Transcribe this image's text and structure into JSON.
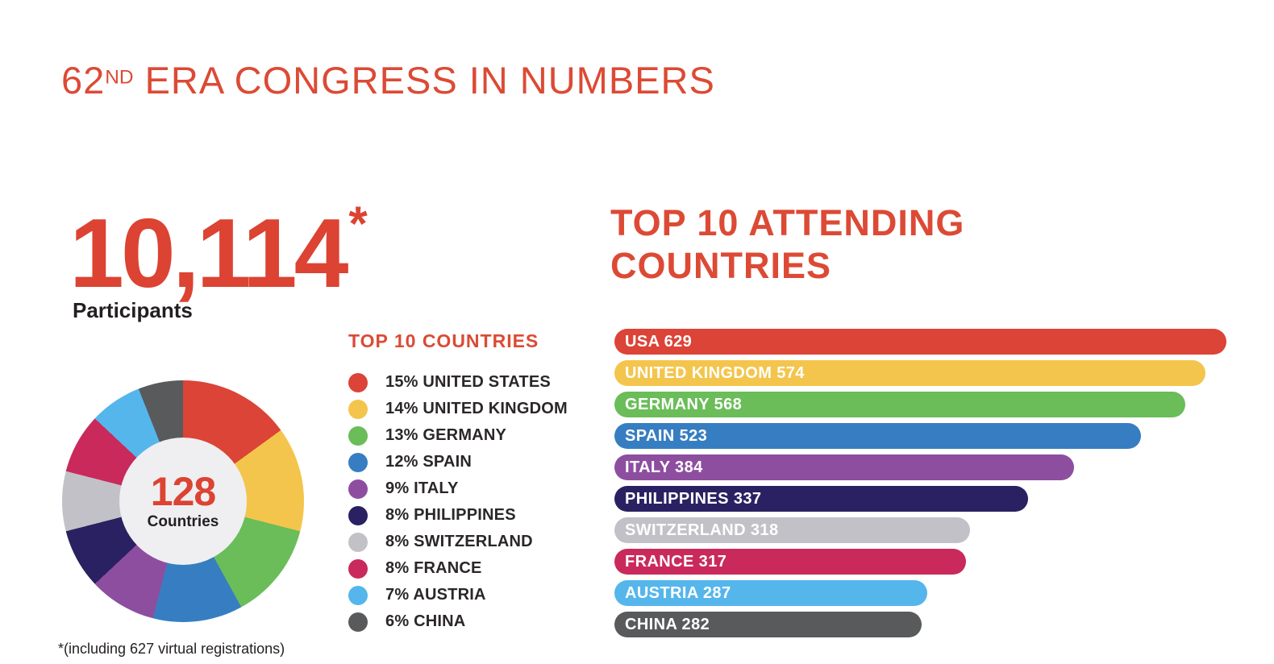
{
  "title": {
    "number": "62",
    "ordinal": "ND",
    "rest": "ERA CONGRESS IN NUMBERS",
    "color": "#dc4a35"
  },
  "participants": {
    "value": "10,114",
    "asterisk": "*",
    "label": "Participants"
  },
  "donut": {
    "center_value": "128",
    "center_label": "Countries",
    "inner_color": "#efeff1"
  },
  "legend": {
    "heading": "TOP 10 COUNTRIES"
  },
  "bar_section": {
    "heading_lines": [
      "TOP 10 ATTENDING",
      "COUNTRIES"
    ]
  },
  "footnote": "*(including 627 virtual registrations)",
  "brand": {
    "accent_red": "#dc4a35",
    "text_black": "#231f20"
  },
  "chart_data": [
    {
      "type": "pie",
      "title": "TOP 10 COUNTRIES",
      "subtype": "donut",
      "center_value": "128",
      "center_label": "Countries",
      "labels": [
        "UNITED STATES",
        "UNITED KINGDOM",
        "GERMANY",
        "SPAIN",
        "ITALY",
        "PHILIPPINES",
        "SWITZERLAND",
        "FRANCE",
        "AUSTRIA",
        "CHINA"
      ],
      "values_pct": [
        15,
        14,
        13,
        12,
        9,
        8,
        8,
        8,
        7,
        6
      ],
      "colors": [
        "#db4437",
        "#f4c54c",
        "#6abd58",
        "#367ec1",
        "#8d4ea0",
        "#2a2162",
        "#c2c1c7",
        "#c92a5b",
        "#55b6ec",
        "#595a5c"
      ],
      "start_angle_deg": 0,
      "direction": "clockwise",
      "legend_position": "right"
    },
    {
      "type": "bar",
      "title": "TOP 10 ATTENDING COUNTRIES",
      "orientation": "horizontal",
      "categories": [
        "USA",
        "UNITED KINGDOM",
        "GERMANY",
        "SPAIN",
        "ITALY",
        "PHILIPPINES",
        "SWITZERLAND",
        "FRANCE",
        "AUSTRIA",
        "CHINA"
      ],
      "values": [
        629,
        574,
        568,
        523,
        384,
        337,
        318,
        317,
        287,
        282
      ],
      "colors": [
        "#db4437",
        "#f4c54c",
        "#6abd58",
        "#367ec1",
        "#8d4ea0",
        "#2a2162",
        "#c2c1c7",
        "#c92a5b",
        "#55b6ec",
        "#595a5c"
      ],
      "bar_width_pct": [
        98.6,
        95.2,
        92.0,
        84.8,
        74.0,
        66.6,
        57.3,
        56.6,
        50.4,
        49.5
      ],
      "data_labels": "inside-start",
      "grid": false
    }
  ]
}
